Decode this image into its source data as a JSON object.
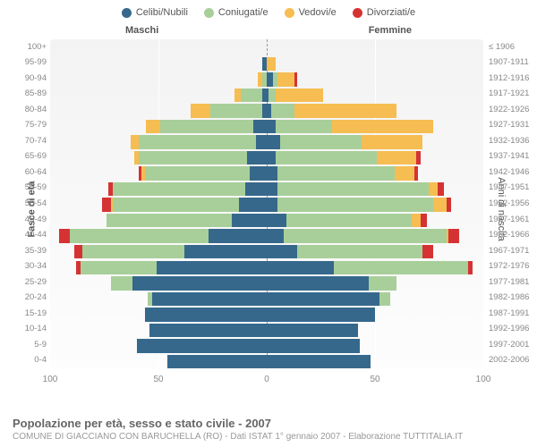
{
  "legend": [
    {
      "label": "Celibi/Nubili",
      "color": "#36688c"
    },
    {
      "label": "Coniugati/e",
      "color": "#a8cf9a"
    },
    {
      "label": "Vedovi/e",
      "color": "#f6bd52"
    },
    {
      "label": "Divorziati/e",
      "color": "#d53333"
    }
  ],
  "titles": {
    "left_axis": "Fasce di età",
    "right_axis": "Anni di nascita",
    "male": "Maschi",
    "female": "Femmine",
    "footer_main": "Popolazione per età, sesso e stato civile - 2007",
    "footer_sub": "COMUNE DI GIACCIANO CON BARUCHELLA (RO) - Dati ISTAT 1° gennaio 2007 - Elaborazione TUTTITALIA.IT"
  },
  "style": {
    "xmax": 100,
    "xticks": [
      100,
      50,
      0,
      50,
      100
    ],
    "background": "#ffffff",
    "plot_bg": "#f5f5f5",
    "grid_color": "#ffffff",
    "center_dash": "#999999",
    "axis_text": "#888888",
    "label_fontsize": 9.5,
    "tick_fontsize": 10,
    "legend_fontsize": 11
  },
  "rows": [
    {
      "age": "100+",
      "birth": "≤ 1906",
      "m": [
        0,
        0,
        0,
        0
      ],
      "f": [
        0,
        0,
        0,
        0
      ]
    },
    {
      "age": "95-99",
      "birth": "1907-1911",
      "m": [
        2,
        0,
        0,
        0
      ],
      "f": [
        0,
        0,
        4,
        0
      ]
    },
    {
      "age": "90-94",
      "birth": "1912-1916",
      "m": [
        0,
        2,
        2,
        0
      ],
      "f": [
        3,
        2,
        8,
        1
      ]
    },
    {
      "age": "85-89",
      "birth": "1917-1921",
      "m": [
        2,
        10,
        3,
        0
      ],
      "f": [
        1,
        3,
        22,
        0
      ]
    },
    {
      "age": "80-84",
      "birth": "1922-1926",
      "m": [
        2,
        24,
        9,
        0
      ],
      "f": [
        2,
        11,
        47,
        0
      ]
    },
    {
      "age": "75-79",
      "birth": "1927-1931",
      "m": [
        6,
        43,
        7,
        0
      ],
      "f": [
        4,
        26,
        47,
        0
      ]
    },
    {
      "age": "70-74",
      "birth": "1932-1936",
      "m": [
        5,
        54,
        4,
        0
      ],
      "f": [
        6,
        38,
        28,
        0
      ]
    },
    {
      "age": "65-69",
      "birth": "1937-1941",
      "m": [
        9,
        50,
        2,
        0
      ],
      "f": [
        4,
        47,
        18,
        2
      ]
    },
    {
      "age": "60-64",
      "birth": "1942-1946",
      "m": [
        8,
        48,
        2,
        1
      ],
      "f": [
        5,
        54,
        9,
        2
      ]
    },
    {
      "age": "55-59",
      "birth": "1947-1951",
      "m": [
        10,
        61,
        0,
        2
      ],
      "f": [
        5,
        70,
        4,
        3
      ]
    },
    {
      "age": "50-54",
      "birth": "1952-1956",
      "m": [
        13,
        58,
        1,
        4
      ],
      "f": [
        5,
        72,
        6,
        2
      ]
    },
    {
      "age": "45-49",
      "birth": "1957-1961",
      "m": [
        16,
        58,
        0,
        0
      ],
      "f": [
        9,
        58,
        4,
        3
      ]
    },
    {
      "age": "40-44",
      "birth": "1962-1966",
      "m": [
        27,
        64,
        0,
        5
      ],
      "f": [
        8,
        75,
        1,
        5
      ]
    },
    {
      "age": "35-39",
      "birth": "1967-1971",
      "m": [
        38,
        47,
        0,
        4
      ],
      "f": [
        14,
        58,
        0,
        5
      ]
    },
    {
      "age": "30-34",
      "birth": "1972-1976",
      "m": [
        51,
        35,
        0,
        2
      ],
      "f": [
        31,
        62,
        0,
        2
      ]
    },
    {
      "age": "25-29",
      "birth": "1977-1981",
      "m": [
        62,
        10,
        0,
        0
      ],
      "f": [
        47,
        13,
        0,
        0
      ]
    },
    {
      "age": "20-24",
      "birth": "1982-1986",
      "m": [
        53,
        2,
        0,
        0
      ],
      "f": [
        52,
        5,
        0,
        0
      ]
    },
    {
      "age": "15-19",
      "birth": "1987-1991",
      "m": [
        56,
        0,
        0,
        0
      ],
      "f": [
        50,
        0,
        0,
        0
      ]
    },
    {
      "age": "10-14",
      "birth": "1992-1996",
      "m": [
        54,
        0,
        0,
        0
      ],
      "f": [
        42,
        0,
        0,
        0
      ]
    },
    {
      "age": "5-9",
      "birth": "1997-2001",
      "m": [
        60,
        0,
        0,
        0
      ],
      "f": [
        43,
        0,
        0,
        0
      ]
    },
    {
      "age": "0-4",
      "birth": "2002-2006",
      "m": [
        46,
        0,
        0,
        0
      ],
      "f": [
        48,
        0,
        0,
        0
      ]
    }
  ]
}
